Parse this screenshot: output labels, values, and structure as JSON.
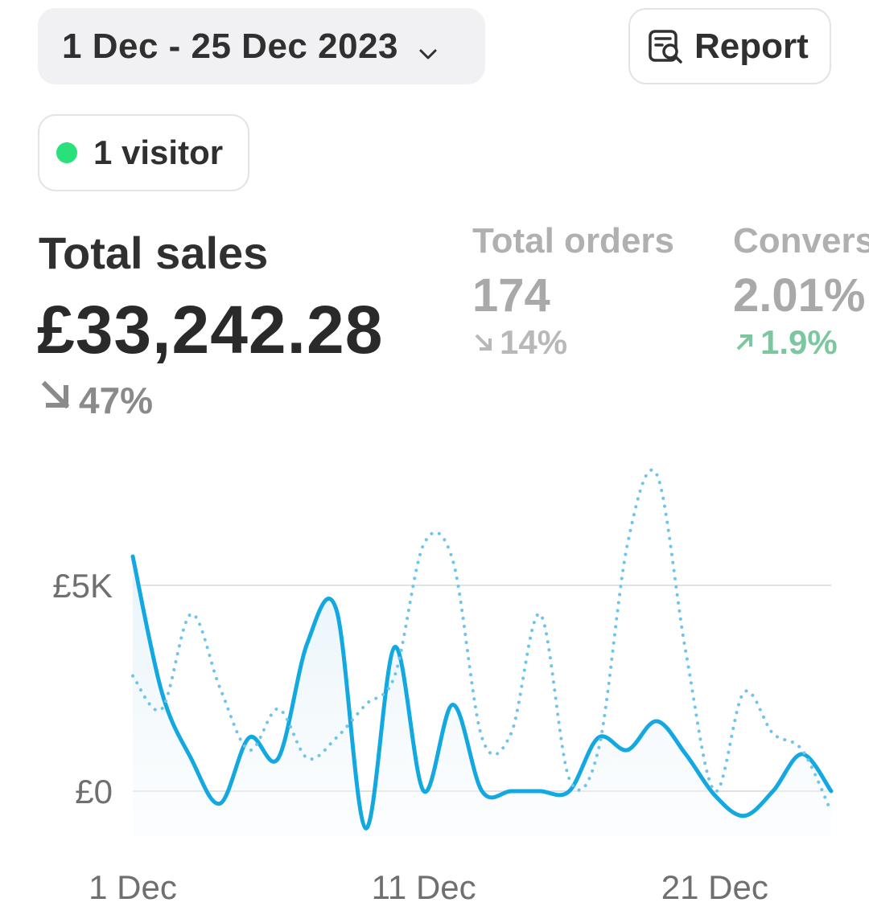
{
  "header": {
    "date_range": "1 Dec - 25 Dec 2023",
    "report_label": "Report"
  },
  "visitors": {
    "label": "1 visitor",
    "status_color": "#29e07b"
  },
  "metrics": {
    "total_sales": {
      "label": "Total sales",
      "value": "£33,242.28",
      "change": "47%",
      "direction": "down"
    },
    "total_orders": {
      "label": "Total orders",
      "value": "174",
      "change": "14%",
      "direction": "down"
    },
    "conversion": {
      "label": "Convers",
      "value": "2.01%",
      "change": "1.9%",
      "direction": "up"
    }
  },
  "chart_data": {
    "type": "line",
    "x": [
      1,
      2,
      3,
      4,
      5,
      6,
      7,
      8,
      9,
      10,
      11,
      12,
      13,
      14,
      15,
      16,
      17,
      18,
      19,
      20,
      21,
      22,
      23,
      24,
      25
    ],
    "x_tick_labels": [
      "1 Dec",
      "11 Dec",
      "21 Dec"
    ],
    "x_tick_positions": [
      1,
      11,
      21
    ],
    "y_tick_labels": [
      "£5K",
      "£0"
    ],
    "y_tick_values": [
      5000,
      0
    ],
    "ylim": [
      -1000,
      8000
    ],
    "xlim": [
      1,
      25
    ],
    "grid": "horizontal",
    "series": [
      {
        "style": "solid",
        "color": "#13a8e0",
        "values": [
          5700,
          2400,
          800,
          -300,
          1300,
          800,
          3600,
          4400,
          -900,
          3500,
          0,
          2100,
          0,
          0,
          0,
          0,
          1300,
          1000,
          1700,
          900,
          -100,
          -600,
          0,
          900,
          0
        ]
      },
      {
        "style": "dotted",
        "color": "#6fc4ea",
        "values": [
          2800,
          2000,
          4300,
          2500,
          1000,
          2000,
          800,
          1300,
          2100,
          2800,
          6000,
          5600,
          1300,
          1400,
          4300,
          300,
          1000,
          6000,
          7700,
          3400,
          0,
          2400,
          1400,
          1000,
          -500
        ]
      }
    ]
  }
}
